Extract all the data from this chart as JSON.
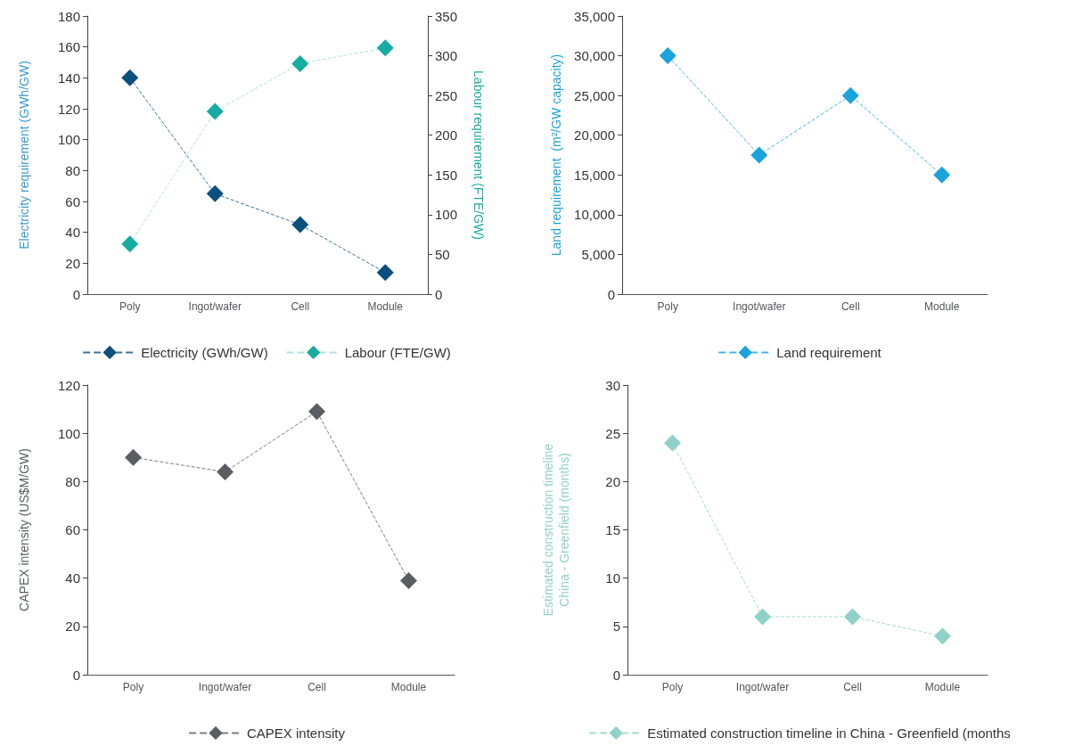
{
  "chart_data": [
    {
      "type": "line",
      "categories": [
        "Poly",
        "Ingot/wafer",
        "Cell",
        "Module"
      ],
      "ylabel": "Electricity requirement (GWh/GW)",
      "y2label": "Labour requirement (FTE/GW)",
      "ylim": [
        0,
        180
      ],
      "yticks": [
        0,
        20,
        40,
        60,
        80,
        100,
        120,
        140,
        160,
        180
      ],
      "y2lim": [
        0,
        350
      ],
      "y2ticks": [
        0,
        50,
        100,
        150,
        200,
        250,
        300,
        350
      ],
      "marker": "diamond",
      "line_style": "dashed",
      "grid": false,
      "legend": "bottom",
      "series": [
        {
          "name": "Electricity (GWh/GW)",
          "color": "#0b4f7d",
          "values": [
            140,
            65,
            45,
            14
          ]
        },
        {
          "name": "Labour (FTE/GW)",
          "color": "#17aba1",
          "values": [
            63,
            230,
            290,
            310
          ],
          "axis": "y2"
        }
      ]
    },
    {
      "type": "line",
      "categories": [
        "Poly",
        "Ingot/wafer",
        "Cell",
        "Module"
      ],
      "ylabel": "Land requirement  (m²/GW capacity)",
      "ylim": [
        0,
        35000
      ],
      "yticks": [
        {
          "value": 0,
          "label": "0"
        },
        {
          "value": 5000,
          "label": "5,000"
        },
        {
          "value": 10000,
          "label": "10,000"
        },
        {
          "value": 15000,
          "label": "15,000"
        },
        {
          "value": 20000,
          "label": "20,000"
        },
        {
          "value": 25000,
          "label": "25,000"
        },
        {
          "value": 30000,
          "label": "30,000"
        },
        {
          "value": 35000,
          "label": "35,000"
        }
      ],
      "marker": "diamond",
      "line_style": "dashed",
      "grid": false,
      "legend": "bottom",
      "series": [
        {
          "name": "Land requirement",
          "color": "#1aa3dc",
          "values": [
            30000,
            17500,
            25000,
            15000
          ]
        }
      ]
    },
    {
      "type": "line",
      "categories": [
        "Poly",
        "Ingot/wafer",
        "Cell",
        "Module"
      ],
      "ylabel": "CAPEX intensity (US$M/GW)",
      "ylim": [
        0,
        120
      ],
      "yticks": [
        0,
        20,
        40,
        60,
        80,
        100,
        120
      ],
      "marker": "diamond",
      "line_style": "dashed",
      "grid": false,
      "legend": "bottom",
      "series": [
        {
          "name": "CAPEX intensity",
          "color": "#5a5e63",
          "values": [
            90,
            84,
            109,
            39
          ]
        }
      ]
    },
    {
      "type": "line",
      "categories": [
        "Poly",
        "Ingot/wafer",
        "Cell",
        "Module"
      ],
      "ylabel": "Estimated construction timeline\nChina - Greenfield (months)",
      "ylim": [
        0,
        30
      ],
      "yticks": [
        0,
        5,
        10,
        15,
        20,
        25,
        30
      ],
      "marker": "diamond",
      "line_style": "dashed",
      "grid": false,
      "legend": "bottom",
      "series": [
        {
          "name": "Estimated construction timeline in China - Greenfield (months",
          "color": "#8fd1c8",
          "values": [
            24,
            6,
            6,
            4
          ]
        }
      ]
    }
  ]
}
